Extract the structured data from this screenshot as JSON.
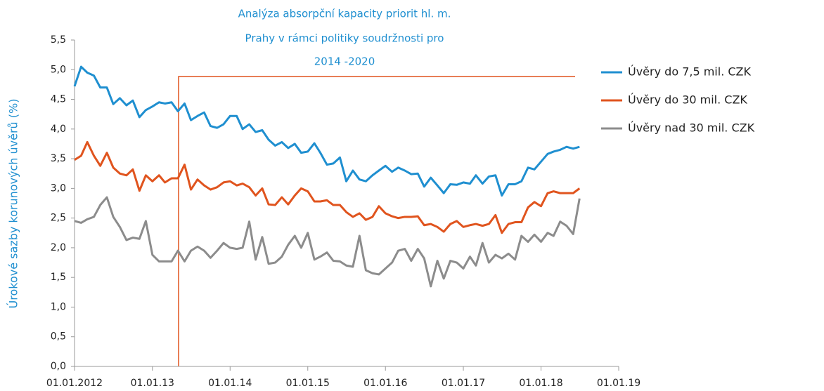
{
  "chart_data": {
    "type": "line",
    "title": [
      "Analýza absorpční kapacity  priorit hl. m.",
      "Prahy v rámci politiky soudržnosti pro",
      "2014 -2020"
    ],
    "y_label": "Úrokové sazby korunových úvěrů (%)",
    "x": [
      "2012-01-01",
      "2012-02-01",
      "2012-03-01",
      "2012-04-01",
      "2012-05-01",
      "2012-06-01",
      "2012-07-01",
      "2012-08-01",
      "2012-09-01",
      "2012-10-01",
      "2012-11-01",
      "2012-12-01",
      "2013-01-01",
      "2013-02-01",
      "2013-03-01",
      "2013-04-01",
      "2013-05-01",
      "2013-06-01",
      "2013-07-01",
      "2013-08-01",
      "2013-09-01",
      "2013-10-01",
      "2013-11-01",
      "2013-12-01",
      "2014-01-01",
      "2014-02-01",
      "2014-03-01",
      "2014-04-01",
      "2014-05-01",
      "2014-06-01",
      "2014-07-01",
      "2014-08-01",
      "2014-09-01",
      "2014-10-01",
      "2014-11-01",
      "2014-12-01",
      "2015-01-01",
      "2015-02-01",
      "2015-03-01",
      "2015-04-01",
      "2015-05-01",
      "2015-06-01",
      "2015-07-01",
      "2015-08-01",
      "2015-09-01",
      "2015-10-01",
      "2015-11-01",
      "2015-12-01",
      "2016-01-01",
      "2016-02-01",
      "2016-03-01",
      "2016-04-01",
      "2016-05-01",
      "2016-06-01",
      "2016-07-01",
      "2016-08-01",
      "2016-09-01",
      "2016-10-01",
      "2016-11-01",
      "2016-12-01",
      "2017-01-01",
      "2017-02-01",
      "2017-03-01",
      "2017-04-01",
      "2017-05-01",
      "2017-06-01",
      "2017-07-01",
      "2017-08-01",
      "2017-09-01",
      "2017-10-01",
      "2017-11-01",
      "2017-12-01",
      "2018-01-01",
      "2018-02-01",
      "2018-03-01",
      "2018-04-01",
      "2018-05-01",
      "2018-06-01",
      "2018-07-01"
    ],
    "series": [
      {
        "name": "Úvěry do 7,5 mil. CZK",
        "color": "#1f8fd0",
        "values": [
          4.72,
          5.05,
          4.95,
          4.9,
          4.7,
          4.7,
          4.42,
          4.52,
          4.4,
          4.48,
          4.2,
          4.32,
          4.38,
          4.45,
          4.43,
          4.45,
          4.3,
          4.43,
          4.15,
          4.22,
          4.28,
          4.05,
          4.02,
          4.08,
          4.22,
          4.22,
          4.0,
          4.08,
          3.95,
          3.98,
          3.82,
          3.72,
          3.78,
          3.68,
          3.75,
          3.6,
          3.62,
          3.76,
          3.6,
          3.4,
          3.42,
          3.52,
          3.12,
          3.3,
          3.15,
          3.12,
          3.22,
          3.3,
          3.38,
          3.28,
          3.35,
          3.3,
          3.24,
          3.25,
          3.03,
          3.18,
          3.05,
          2.92,
          3.07,
          3.06,
          3.1,
          3.08,
          3.22,
          3.08,
          3.2,
          3.22,
          2.88,
          3.07,
          3.07,
          3.12,
          3.35,
          3.32,
          3.45,
          3.58,
          3.62,
          3.65,
          3.7,
          3.67,
          3.7
        ]
      },
      {
        "name": "Úvěry do 30 mil. CZK",
        "color": "#e0541e",
        "values": [
          3.48,
          3.55,
          3.78,
          3.55,
          3.38,
          3.6,
          3.35,
          3.25,
          3.22,
          3.32,
          2.96,
          3.22,
          3.12,
          3.22,
          3.1,
          3.17,
          3.17,
          3.4,
          2.98,
          3.15,
          3.05,
          2.98,
          3.02,
          3.1,
          3.12,
          3.05,
          3.08,
          3.02,
          2.88,
          3.0,
          2.73,
          2.72,
          2.85,
          2.73,
          2.88,
          3.0,
          2.95,
          2.78,
          2.78,
          2.8,
          2.72,
          2.72,
          2.6,
          2.52,
          2.58,
          2.47,
          2.52,
          2.7,
          2.58,
          2.53,
          2.5,
          2.52,
          2.52,
          2.53,
          2.38,
          2.4,
          2.35,
          2.27,
          2.4,
          2.45,
          2.35,
          2.38,
          2.4,
          2.37,
          2.4,
          2.55,
          2.25,
          2.4,
          2.43,
          2.43,
          2.68,
          2.77,
          2.7,
          2.92,
          2.95,
          2.92,
          2.92,
          2.92,
          3.0
        ]
      },
      {
        "name": "Úvěry nad 30 mil. CZK",
        "color": "#8c8c8c",
        "values": [
          2.45,
          2.42,
          2.48,
          2.52,
          2.72,
          2.85,
          2.52,
          2.35,
          2.13,
          2.17,
          2.15,
          2.45,
          1.88,
          1.77,
          1.77,
          1.77,
          1.95,
          1.77,
          1.95,
          2.02,
          1.95,
          1.83,
          1.95,
          2.08,
          2.0,
          1.98,
          2.0,
          2.44,
          1.8,
          2.18,
          1.73,
          1.75,
          1.85,
          2.05,
          2.2,
          2.0,
          2.25,
          1.8,
          1.85,
          1.92,
          1.78,
          1.77,
          1.7,
          1.68,
          2.2,
          1.62,
          1.57,
          1.55,
          1.65,
          1.75,
          1.95,
          1.98,
          1.78,
          1.98,
          1.82,
          1.35,
          1.78,
          1.48,
          1.78,
          1.75,
          1.65,
          1.85,
          1.7,
          2.08,
          1.75,
          1.88,
          1.82,
          1.9,
          1.8,
          2.2,
          2.1,
          2.22,
          2.1,
          2.25,
          2.2,
          2.44,
          2.37,
          2.23,
          2.83
        ]
      }
    ],
    "xlim": [
      "2012-01-01",
      "2019-01-01"
    ],
    "xticks": [
      {
        "value": "2012-01-01",
        "label": "01.01.2012"
      },
      {
        "value": "2013-01-01",
        "label": "01.01.13"
      },
      {
        "value": "2014-01-01",
        "label": "01.01.14"
      },
      {
        "value": "2015-01-01",
        "label": "01.01.15"
      },
      {
        "value": "2016-01-01",
        "label": "01.01.16"
      },
      {
        "value": "2017-01-01",
        "label": "01.01.17"
      },
      {
        "value": "2018-01-01",
        "label": "01.01.18"
      },
      {
        "value": "2019-01-01",
        "label": "01.01.19"
      }
    ],
    "ylim": [
      0,
      5.5
    ],
    "yticks": [
      {
        "value": 0,
        "label": "0,0"
      },
      {
        "value": 0.5,
        "label": "0,5"
      },
      {
        "value": 1,
        "label": "1,0"
      },
      {
        "value": 1.5,
        "label": "1,5"
      },
      {
        "value": 2,
        "label": "2,0"
      },
      {
        "value": 2.5,
        "label": "2,5"
      },
      {
        "value": 3,
        "label": "3,0"
      },
      {
        "value": 3.5,
        "label": "3,5"
      },
      {
        "value": 4,
        "label": "4,0"
      },
      {
        "value": 4.5,
        "label": "4,5"
      },
      {
        "value": 5,
        "label": "5,0"
      },
      {
        "value": 5.5,
        "label": "5,5"
      }
    ],
    "legend": "right",
    "grid": false
  }
}
